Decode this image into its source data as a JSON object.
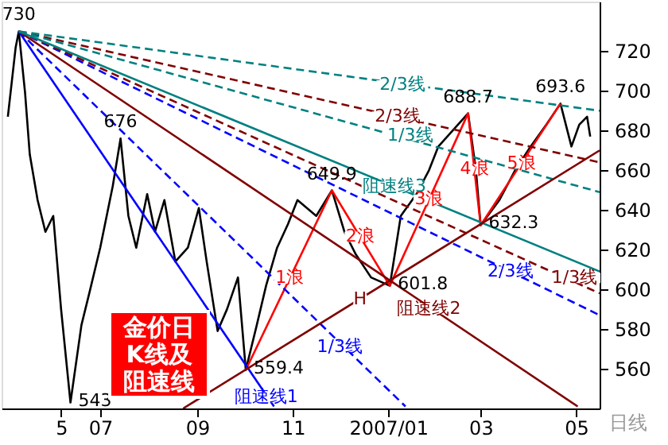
{
  "chart_data": {
    "type": "line",
    "title": "金价日K线及阻速线",
    "xlabel": "日线",
    "xlim": [
      "2006-04-29",
      "2007-05-16"
    ],
    "ylim": [
      540,
      745
    ],
    "xticks": [
      {
        "value": "2006-06-06",
        "label": "5"
      },
      {
        "value": "2006-07-01",
        "label": "07"
      },
      {
        "value": "2006-09-01",
        "label": "09"
      },
      {
        "value": "2006-11-01",
        "label": "11"
      },
      {
        "value": "2007-01-01",
        "label": "2007/01"
      },
      {
        "value": "2007-03-01",
        "label": "03"
      },
      {
        "value": "2007-05-01",
        "label": "05"
      }
    ],
    "yticks": [
      560,
      580,
      600,
      620,
      640,
      660,
      680,
      700,
      720
    ],
    "grid": false,
    "series": [
      {
        "color": "#000000",
        "line_style": "solid",
        "x": [
          "2006-05-03",
          "2006-05-08",
          "2006-05-10",
          "2006-05-14",
          "2006-05-17",
          "2006-05-22",
          "2006-05-27",
          "2006-06-01",
          "2006-06-06",
          "2006-06-12",
          "2006-06-19",
          "2006-06-24",
          "2006-07-01",
          "2006-07-09",
          "2006-07-14",
          "2006-07-19",
          "2006-07-24",
          "2006-07-31",
          "2006-08-05",
          "2006-08-11",
          "2006-08-18",
          "2006-08-26",
          "2006-09-02",
          "2006-09-07",
          "2006-09-14",
          "2006-09-20",
          "2006-09-27",
          "2006-10-02",
          "2006-10-09",
          "2006-10-15",
          "2006-10-22",
          "2006-10-29",
          "2006-11-04",
          "2006-11-16",
          "2006-11-26",
          "2006-12-04",
          "2006-12-11",
          "2006-12-21",
          "2007-01-02",
          "2007-01-09",
          "2007-01-19",
          "2007-01-27",
          "2007-02-02",
          "2007-02-21",
          "2007-02-26",
          "2007-03-01",
          "2007-03-13",
          "2007-03-23",
          "2007-04-02",
          "2007-04-12",
          "2007-04-21",
          "2007-04-28",
          "2007-05-03",
          "2007-05-08",
          "2007-05-10"
        ],
        "values": [
          687,
          722,
          730,
          699,
          668,
          645,
          629,
          637,
          590,
          543,
          582,
          598,
          621,
          652,
          676,
          637,
          621,
          648,
          629,
          645,
          614,
          621,
          641,
          614,
          579,
          590,
          606,
          559.4,
          582,
          602,
          621,
          633,
          645,
          637,
          649.9,
          629,
          618,
          606,
          601.8,
          637,
          648,
          660,
          672,
          688.7,
          660,
          632.3,
          645,
          660,
          672,
          683,
          693.6,
          672,
          683,
          687,
          677
        ]
      },
      {
        "color": "#ff0000",
        "line_style": "solid",
        "x": [
          "2006-10-02",
          "2006-11-26",
          "2007-01-02",
          "2007-02-21",
          "2007-03-01",
          "2007-04-21"
        ],
        "values": [
          559.4,
          649.9,
          601.8,
          688.7,
          632.3,
          693.6
        ]
      },
      {
        "color": "#0000ff",
        "line_style": "solid",
        "x": [
          "2006-05-10",
          "2006-10-20"
        ],
        "values": [
          730,
          541
        ]
      },
      {
        "color": "#0000ff",
        "line_style": "dashed",
        "x": [
          "2006-05-10",
          "2007-01-12"
        ],
        "values": [
          730,
          541
        ]
      },
      {
        "color": "#0000ff",
        "line_style": "dashed",
        "x": [
          "2006-05-10",
          "2007-05-16"
        ],
        "values": [
          730,
          587
        ]
      },
      {
        "color": "#800000",
        "line_style": "solid",
        "x": [
          "2006-05-10",
          "2007-05-02"
        ],
        "values": [
          730,
          541
        ]
      },
      {
        "color": "#800000",
        "line_style": "dashed",
        "x": [
          "2006-05-10",
          "2007-05-16"
        ],
        "values": [
          730,
          598
        ]
      },
      {
        "color": "#800000",
        "line_style": "dashed",
        "x": [
          "2006-05-10",
          "2007-05-16"
        ],
        "values": [
          730,
          664
        ]
      },
      {
        "color": "#008080",
        "line_style": "solid",
        "x": [
          "2006-05-10",
          "2007-05-16"
        ],
        "values": [
          730,
          609
        ]
      },
      {
        "color": "#008080",
        "line_style": "dashed",
        "x": [
          "2006-05-10",
          "2007-05-16"
        ],
        "values": [
          730,
          649
        ]
      },
      {
        "color": "#008080",
        "line_style": "dashed",
        "x": [
          "2006-05-10",
          "2007-05-16"
        ],
        "values": [
          730,
          690
        ]
      },
      {
        "color": "#800000",
        "line_style": "solid",
        "x": [
          "2006-08-23",
          "2007-05-16"
        ],
        "values": [
          540,
          670
        ]
      }
    ],
    "annotations": [
      {
        "text": "730",
        "x": "2006-05-10",
        "y": 730
      },
      {
        "text": "676",
        "x": "2006-07-14",
        "y": 676
      },
      {
        "text": "543",
        "x": "2006-06-12",
        "y": 543
      },
      {
        "text": "559.4",
        "x": "2006-10-02",
        "y": 559.4
      },
      {
        "text": "649.9",
        "x": "2006-11-26",
        "y": 649.9
      },
      {
        "text": "601.8",
        "x": "2007-01-02",
        "y": 601.8
      },
      {
        "text": "688.7",
        "x": "2007-02-21",
        "y": 688.7
      },
      {
        "text": "632.3",
        "x": "2007-03-01",
        "y": 632.3
      },
      {
        "text": "693.6",
        "x": "2007-04-21",
        "y": 693.6
      },
      {
        "text": "1浪",
        "x": "2006-10-30",
        "y": 605.5
      },
      {
        "text": "2浪",
        "x": "2006-12-14",
        "y": 626.5
      },
      {
        "text": "3浪",
        "x": "2007-01-27",
        "y": 645.2
      },
      {
        "text": "4浪",
        "x": "2007-02-25",
        "y": 660.5
      },
      {
        "text": "5浪",
        "x": "2007-03-27",
        "y": 663.5
      },
      {
        "text": "H",
        "x": "2006-12-14",
        "y": 595
      },
      {
        "text": "阻速线1",
        "x": "2006-10-15",
        "y": 545.6
      },
      {
        "text": "1/3线",
        "x": "2006-12-01",
        "y": 571
      },
      {
        "text": "2/3线",
        "x": "2007-03-20",
        "y": 609
      },
      {
        "text": "阻速线2",
        "x": "2007-01-27",
        "y": 590
      },
      {
        "text": "1/3线",
        "x": "2007-04-30",
        "y": 605.8
      },
      {
        "text": "2/3线",
        "x": "2007-01-07",
        "y": 687
      },
      {
        "text": "阻速线3",
        "x": "2007-01-05",
        "y": 651.7
      },
      {
        "text": "1/3线",
        "x": "2007-01-15",
        "y": 677.3
      },
      {
        "text": "2/3线",
        "x": "2007-01-10",
        "y": 702.8
      }
    ]
  }
}
